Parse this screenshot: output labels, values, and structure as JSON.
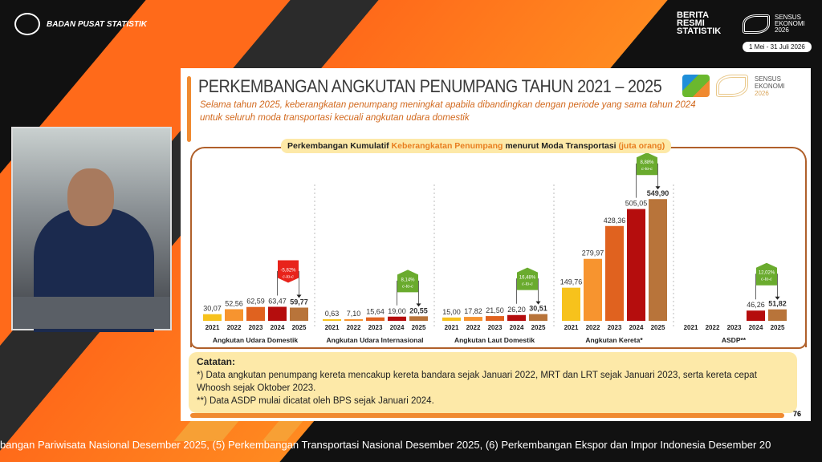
{
  "header": {
    "org": "BADAN PUSAT STATISTIK",
    "brs": [
      "BERITA",
      "RESMI",
      "STATISTIK"
    ],
    "census": [
      "SENSUS",
      "EKONOMI",
      "2026"
    ],
    "census_dates": "1 Mei - 31 Juli 2026"
  },
  "slide": {
    "title": "PERKEMBANGAN ANGKUTAN PENUMPANG TAHUN 2021 – 2025",
    "subtitle": "Selama tahun 2025, keberangkatan penumpang meningkat apabila dibandingkan dengan periode  yang sama tahun 2024 untuk seluruh moda transportasi kecuali angkutan udara domestik",
    "logo_text": [
      "SENSUS",
      "EKONOMI",
      "2026"
    ],
    "notes_title": "Catatan:",
    "notes": [
      "*) Data angkutan penumpang kereta mencakup kereta bandara sejak Januari 2022, MRT dan LRT sejak Januari 2023, serta kereta cepat Whoosh sejak Oktober 2023.",
      "**) Data ASDP mulai dicatat oleh BPS sejak Januari 2024."
    ],
    "page_number": "76"
  },
  "ticker": "bangan Pariwisata Nasional Desember 2025, (5) Perkembangan Transportasi Nasional Desember 2025, (6) Perkembangan Ekspor dan Impor Indonesia  Desember 20",
  "chart_data": {
    "type": "bar",
    "title_parts": [
      "Perkembangan Kumulatif ",
      "Keberangkatan Penumpang",
      " menurut Moda Transportasi ",
      "(juta orang)"
    ],
    "categories": [
      "2021",
      "2022",
      "2023",
      "2024",
      "2025"
    ],
    "colors": {
      "2021": "#f7c21c",
      "2022": "#f7942f",
      "2023": "#e0621f",
      "2024": "#b50d0d",
      "2025": "#b8743a",
      "increase": "#6aab2e",
      "decrease": "#e8231b"
    },
    "panels": [
      {
        "name": "Angkutan Udara Domestik",
        "values": [
          30.07,
          52.56,
          62.59,
          63.47,
          59.77
        ],
        "labels": [
          "30,07",
          "52,56",
          "62,59",
          "63,47",
          "59,77"
        ],
        "change": "-5,82%",
        "change_label": "c-to-c",
        "direction": "decrease"
      },
      {
        "name": "Angkutan Udara Internasional",
        "values": [
          0.63,
          7.1,
          15.64,
          19.0,
          20.55
        ],
        "labels": [
          "0,63",
          "7,10",
          "15,64",
          "19,00",
          "20,55"
        ],
        "change": "8,14%",
        "change_label": "c-to-c",
        "direction": "increase"
      },
      {
        "name": "Angkutan Laut Domestik",
        "values": [
          15.0,
          17.82,
          21.5,
          26.2,
          30.51
        ],
        "labels": [
          "15,00",
          "17,82",
          "21,50",
          "26,20",
          "30,51"
        ],
        "change": "16,48%",
        "change_label": "c-to-c",
        "direction": "increase"
      },
      {
        "name": "Angkutan Kereta*",
        "values": [
          149.76,
          279.97,
          428.36,
          505.05,
          549.9
        ],
        "labels": [
          "149,76",
          "279,97",
          "428,36",
          "505,05",
          "549,90"
        ],
        "change": "8,88%",
        "change_label": "c-to-c",
        "direction": "increase"
      },
      {
        "name": "ASDP**",
        "values": [
          null,
          null,
          null,
          46.26,
          51.82
        ],
        "labels": [
          "",
          "",
          "",
          "46,26",
          "51,82"
        ],
        "change": "12,02%",
        "change_label": "c-to-c",
        "direction": "increase"
      }
    ]
  }
}
